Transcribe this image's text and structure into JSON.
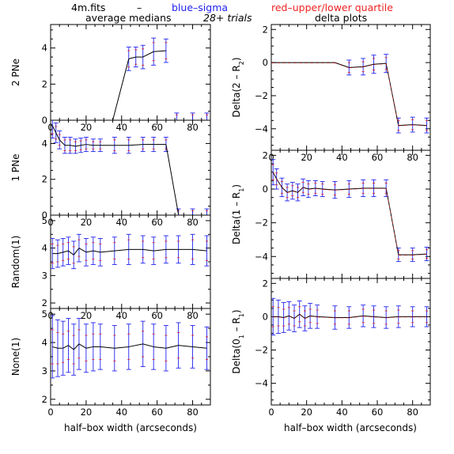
{
  "header": {
    "filename": "4m.fits",
    "dash": "–",
    "blue_label": "blue–sigma",
    "red_label": "red–upper/lower quartile",
    "left_title": "average medians",
    "center_title": "28+ trials",
    "right_title": "delta plots"
  },
  "colors": {
    "median_line": "#000000",
    "sigma": "#2222ee",
    "quartile": "#ee2222",
    "axes": "#000000",
    "blue_text": "#2222ee",
    "red_text": "#ee2222"
  },
  "chart_data": [
    {
      "type": "line",
      "panel": "left-1",
      "ylabel": "2 PNe",
      "xlim": [
        0,
        90
      ],
      "ylim": [
        0,
        5.3
      ],
      "xticks": [
        0,
        20,
        40,
        60,
        80
      ],
      "yticks": [
        0,
        2,
        4
      ],
      "x": [
        35,
        44,
        48,
        52,
        58,
        65,
        71,
        80,
        88
      ],
      "values": [
        0,
        3.4,
        3.5,
        3.5,
        3.8,
        3.85,
        0.1,
        0.1,
        0.1
      ],
      "err_sigma": [
        0,
        0.65,
        0.55,
        0.65,
        0.75,
        0.65,
        0.3,
        0.3,
        0.3
      ],
      "err_quartile": [
        0,
        0.45,
        0.4,
        0.45,
        0.5,
        0.45,
        0.2,
        0.2,
        0.2
      ],
      "draw_line": [
        true,
        true,
        true,
        true,
        true,
        true,
        false,
        false,
        false
      ]
    },
    {
      "type": "line",
      "panel": "left-2",
      "ylabel": "1 PNe",
      "xlim": [
        0,
        90
      ],
      "ylim": [
        0,
        5.3
      ],
      "xticks": [
        0,
        20,
        40,
        60,
        80
      ],
      "yticks": [
        0,
        2,
        4
      ],
      "x": [
        1,
        3,
        5,
        8,
        11,
        14,
        17,
        20,
        24,
        28,
        36,
        44,
        52,
        58,
        65,
        72,
        80,
        88
      ],
      "values": [
        5.0,
        4.6,
        4.2,
        3.9,
        3.9,
        3.85,
        3.9,
        3.95,
        3.9,
        3.9,
        3.9,
        3.9,
        3.95,
        3.95,
        3.95,
        0.05,
        0.05,
        0.05
      ],
      "err_sigma": [
        0.7,
        0.55,
        0.5,
        0.45,
        0.45,
        0.4,
        0.4,
        0.4,
        0.35,
        0.35,
        0.45,
        0.45,
        0.4,
        0.4,
        0.4,
        0.3,
        0.3,
        0.3
      ],
      "err_quartile": [
        0.45,
        0.35,
        0.3,
        0.3,
        0.3,
        0.25,
        0.25,
        0.25,
        0.2,
        0.2,
        0.3,
        0.3,
        0.25,
        0.25,
        0.25,
        0.2,
        0.2,
        0.2
      ],
      "draw_line": [
        true,
        true,
        true,
        true,
        true,
        true,
        true,
        true,
        true,
        true,
        true,
        true,
        true,
        true,
        true,
        true,
        false,
        false
      ]
    },
    {
      "type": "line",
      "panel": "left-3",
      "ylabel": "Random(1)",
      "xlim": [
        0,
        90
      ],
      "ylim": [
        1.8,
        5.2
      ],
      "xticks": [
        0,
        20,
        40,
        60,
        80
      ],
      "yticks": [
        2,
        3,
        4,
        5
      ],
      "x": [
        1,
        4,
        7,
        10,
        13,
        16,
        20,
        24,
        28,
        36,
        44,
        52,
        58,
        65,
        72,
        80,
        88
      ],
      "values": [
        3.8,
        3.8,
        3.85,
        3.9,
        3.75,
        4.0,
        3.85,
        3.9,
        3.85,
        3.9,
        3.95,
        3.95,
        3.9,
        3.95,
        3.95,
        3.95,
        3.9
      ],
      "err_sigma": [
        0.55,
        0.5,
        0.5,
        0.5,
        0.5,
        0.5,
        0.5,
        0.5,
        0.5,
        0.5,
        0.55,
        0.5,
        0.5,
        0.5,
        0.5,
        0.55,
        0.55
      ],
      "err_quartile": [
        0.35,
        0.3,
        0.3,
        0.3,
        0.3,
        0.3,
        0.3,
        0.3,
        0.3,
        0.3,
        0.35,
        0.3,
        0.3,
        0.3,
        0.3,
        0.35,
        0.35
      ],
      "draw_line": true
    },
    {
      "type": "line",
      "panel": "left-4",
      "ylabel": "None(1)",
      "xlim": [
        0,
        90
      ],
      "ylim": [
        1.8,
        5.2
      ],
      "xticks": [
        0,
        20,
        40,
        60,
        80
      ],
      "yticks": [
        2,
        3,
        4,
        5
      ],
      "x": [
        1,
        4,
        7,
        10,
        13,
        16,
        20,
        24,
        28,
        36,
        44,
        52,
        58,
        65,
        72,
        80,
        88
      ],
      "values": [
        3.85,
        3.8,
        3.8,
        3.9,
        3.75,
        3.95,
        3.8,
        3.85,
        3.85,
        3.8,
        3.85,
        3.95,
        3.85,
        3.8,
        3.9,
        3.85,
        3.8
      ],
      "err_sigma": [
        1.1,
        1.0,
        0.95,
        0.95,
        0.9,
        0.9,
        0.85,
        0.85,
        0.8,
        0.8,
        0.8,
        0.8,
        0.8,
        0.8,
        0.8,
        0.75,
        0.75
      ],
      "err_quartile": [
        0.6,
        0.55,
        0.5,
        0.5,
        0.5,
        0.5,
        0.45,
        0.45,
        0.45,
        0.45,
        0.45,
        0.45,
        0.45,
        0.45,
        0.45,
        0.4,
        0.4
      ],
      "draw_line": true
    },
    {
      "type": "line",
      "panel": "right-1",
      "ylabel": "Delta(2 – R",
      "ylabel_sub": "2",
      "ylabel_end": ")",
      "xlim": [
        0,
        90
      ],
      "ylim": [
        -5.3,
        2.3
      ],
      "xticks": [
        0,
        20,
        40,
        60,
        80
      ],
      "yticks": [
        -4,
        -2,
        0,
        2
      ],
      "x": [
        0,
        36,
        44,
        52,
        58,
        65,
        72,
        80,
        88
      ],
      "values": [
        0,
        0,
        -0.3,
        -0.25,
        -0.1,
        -0.05,
        -3.8,
        -3.75,
        -3.8
      ],
      "err_sigma": [
        0,
        0,
        0.45,
        0.5,
        0.55,
        0.55,
        0.45,
        0.45,
        0.45
      ],
      "err_quartile": [
        0,
        0,
        0.3,
        0.3,
        0.35,
        0.35,
        0.3,
        0.3,
        0.3
      ],
      "draw_line": true
    },
    {
      "type": "line",
      "panel": "right-2",
      "ylabel": "Delta(1 – R",
      "ylabel_sub": "1",
      "ylabel_end": ")",
      "xlim": [
        0,
        90
      ],
      "ylim": [
        -5.3,
        2.3
      ],
      "xticks": [
        0,
        20,
        40,
        60,
        80
      ],
      "yticks": [
        -4,
        -2,
        0,
        2
      ],
      "x": [
        1,
        3,
        6,
        9,
        12,
        15,
        18,
        21,
        25,
        29,
        36,
        44,
        52,
        58,
        65,
        72,
        80,
        88
      ],
      "values": [
        1.0,
        0.6,
        0.1,
        -0.2,
        -0.1,
        -0.2,
        0.1,
        0.0,
        0.05,
        0.0,
        -0.05,
        0.0,
        0.05,
        0.05,
        0.05,
        -3.9,
        -3.9,
        -3.85
      ],
      "err_sigma": [
        0.75,
        0.6,
        0.55,
        0.5,
        0.5,
        0.5,
        0.5,
        0.5,
        0.45,
        0.45,
        0.5,
        0.5,
        0.5,
        0.5,
        0.5,
        0.4,
        0.4,
        0.4
      ],
      "err_quartile": [
        0.45,
        0.35,
        0.35,
        0.3,
        0.3,
        0.3,
        0.3,
        0.3,
        0.3,
        0.3,
        0.3,
        0.3,
        0.3,
        0.3,
        0.3,
        0.25,
        0.25,
        0.25
      ],
      "draw_line": true
    },
    {
      "type": "line",
      "panel": "right-3",
      "ylabel": "Delta(0",
      "ylabel_sub": "1",
      "ylabel_mid": " – R",
      "ylabel_sub2": "1",
      "ylabel_end": ")",
      "xlim": [
        0,
        90
      ],
      "ylim": [
        -5.3,
        2.3
      ],
      "xticks": [
        0,
        20,
        40,
        60,
        80
      ],
      "yticks": [
        -4,
        -2,
        0,
        2
      ],
      "x": [
        1,
        4,
        7,
        10,
        13,
        16,
        19,
        22,
        26,
        36,
        44,
        52,
        58,
        65,
        72,
        80,
        88
      ],
      "values": [
        0.0,
        0.0,
        -0.05,
        0.05,
        -0.1,
        0.15,
        -0.1,
        0.05,
        0.0,
        -0.05,
        -0.05,
        0.05,
        0.0,
        -0.05,
        0.0,
        0.0,
        0.0
      ],
      "err_sigma": [
        1.1,
        1.0,
        0.9,
        0.85,
        0.8,
        0.8,
        0.75,
        0.75,
        0.7,
        0.7,
        0.65,
        0.65,
        0.65,
        0.65,
        0.65,
        0.6,
        0.6
      ],
      "err_quartile": [
        0.6,
        0.55,
        0.5,
        0.5,
        0.45,
        0.45,
        0.45,
        0.4,
        0.4,
        0.4,
        0.4,
        0.4,
        0.4,
        0.4,
        0.4,
        0.35,
        0.35
      ],
      "draw_line": true
    }
  ],
  "xlabel_left": "half–box width (arcseconds)",
  "xlabel_right": "half–box width (arcseconds)"
}
